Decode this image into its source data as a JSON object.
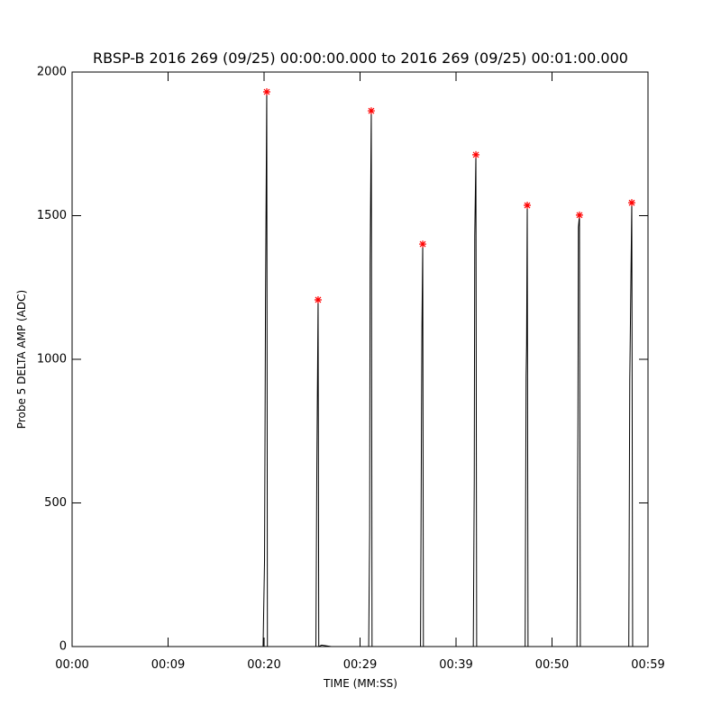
{
  "chart_data": {
    "type": "line",
    "title": "RBSP-B 2016 269 (09/25) 00:00:00.000 to 2016 269 (09/25) 00:01:00.000",
    "x_label": "TIME (MM:SS)",
    "y_label": "Probe 5 DELTA AMP (ADC)",
    "xlim": [
      0,
      60
    ],
    "xticks": [
      {
        "value": 0,
        "label": "00:00"
      },
      {
        "value": 10,
        "label": "00:09"
      },
      {
        "value": 20,
        "label": "00:20"
      },
      {
        "value": 30,
        "label": "00:29"
      },
      {
        "value": 40,
        "label": "00:39"
      },
      {
        "value": 50,
        "label": "00:50"
      },
      {
        "value": 60,
        "label": "00:59"
      }
    ],
    "ylim": [
      0,
      2000
    ],
    "yticks": [
      0,
      500,
      1000,
      1500,
      2000
    ],
    "series": [
      {
        "color": "#000000",
        "x": [
          0,
          19.9,
          20.05,
          20.15,
          20.28,
          20.35,
          25.4,
          25.5,
          25.63,
          25.7,
          26,
          27,
          30.9,
          31.0,
          31.05,
          31.17,
          31.25,
          36.3,
          36.4,
          36.45,
          36.53,
          36.6,
          41.8,
          41.9,
          41.95,
          42.07,
          42.15,
          47.2,
          47.3,
          47.35,
          47.42,
          47.5,
          52.6,
          52.7,
          52.75,
          52.86,
          52.95,
          58.0,
          58.1,
          58.15,
          58.31,
          58.4,
          60
        ],
        "values": [
          0,
          0,
          300,
          1200,
          1931,
          0,
          0,
          630,
          1207,
          0,
          5,
          0,
          0,
          400,
          1330,
          1865,
          0,
          0,
          780,
          1120,
          1401,
          0,
          0,
          580,
          1430,
          1712,
          0,
          0,
          940,
          1050,
          1536,
          0,
          0,
          780,
          1460,
          1502,
          0,
          0,
          930,
          1070,
          1545,
          0,
          0
        ]
      },
      {
        "color": "#ff0000",
        "marker": "asterisk",
        "x": [
          20.28,
          25.63,
          31.17,
          36.53,
          42.07,
          47.42,
          52.86,
          58.31
        ],
        "values": [
          1931,
          1207,
          1865,
          1401,
          1712,
          1536,
          1502,
          1545
        ]
      }
    ]
  }
}
